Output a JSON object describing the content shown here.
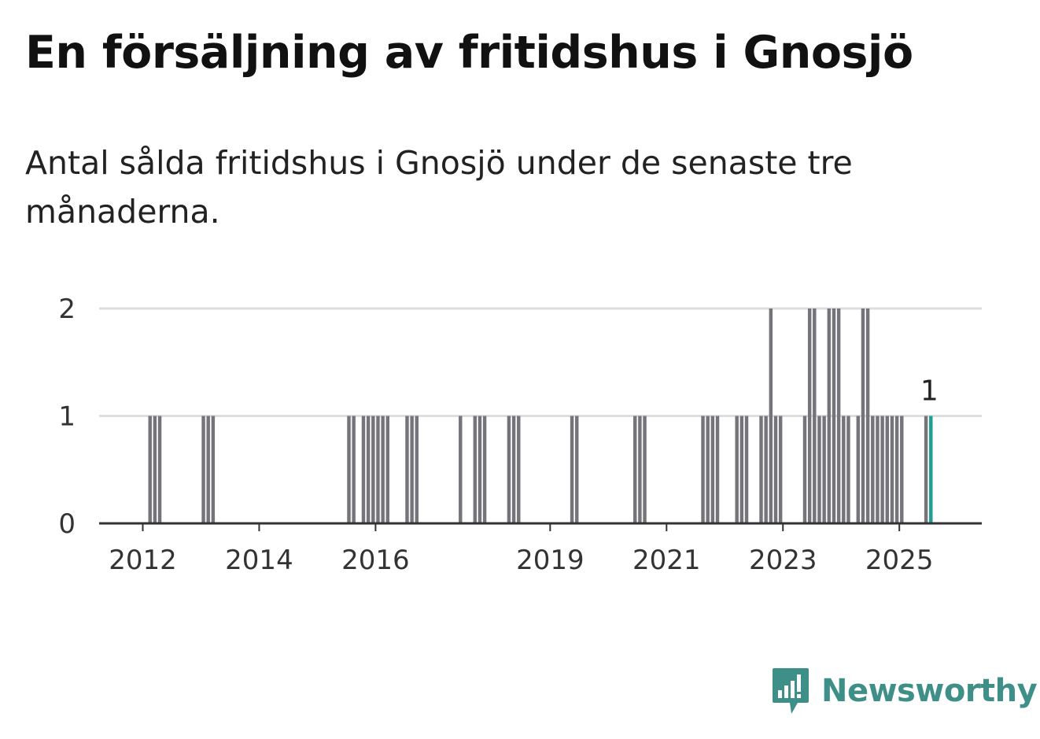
{
  "title": "En försäljning av fritidshus i Gnosjö",
  "subtitle": "Antal sålda fritidshus i Gnosjö under de senaste tre månaderna.",
  "brand": {
    "name": "Newsworthy"
  },
  "colors": {
    "bar": "#75747a",
    "highlight": "#1f9e94",
    "grid": "#dddddd",
    "axis": "#333333",
    "brand": "#3f8f89"
  },
  "chart_data": {
    "type": "bar",
    "title": "En försäljning av fritidshus i Gnosjö",
    "subtitle": "Antal sålda fritidshus i Gnosjö under de senaste tre månaderna.",
    "x_unit": "month",
    "xlim": [
      "2011-04",
      "2026-06"
    ],
    "ylim": [
      0,
      2
    ],
    "y_ticks": [
      0,
      1,
      2
    ],
    "x_ticks": [
      "2012",
      "2014",
      "2016",
      "2019",
      "2021",
      "2023",
      "2025"
    ],
    "grid": true,
    "highlight_label": "1",
    "highlight": {
      "x": "2025-07",
      "value": 1
    },
    "series": [
      {
        "values": [
          {
            "x": "2012-02",
            "value": 1
          },
          {
            "x": "2012-03",
            "value": 1
          },
          {
            "x": "2012-04",
            "value": 1
          },
          {
            "x": "2013-01",
            "value": 1
          },
          {
            "x": "2013-02",
            "value": 1
          },
          {
            "x": "2013-03",
            "value": 1
          },
          {
            "x": "2015-07",
            "value": 1
          },
          {
            "x": "2015-08",
            "value": 1
          },
          {
            "x": "2015-10",
            "value": 1
          },
          {
            "x": "2015-11",
            "value": 1
          },
          {
            "x": "2015-12",
            "value": 1
          },
          {
            "x": "2016-01",
            "value": 1
          },
          {
            "x": "2016-02",
            "value": 1
          },
          {
            "x": "2016-03",
            "value": 1
          },
          {
            "x": "2016-07",
            "value": 1
          },
          {
            "x": "2016-08",
            "value": 1
          },
          {
            "x": "2016-09",
            "value": 1
          },
          {
            "x": "2017-06",
            "value": 1
          },
          {
            "x": "2017-09",
            "value": 1
          },
          {
            "x": "2017-10",
            "value": 1
          },
          {
            "x": "2017-11",
            "value": 1
          },
          {
            "x": "2018-04",
            "value": 1
          },
          {
            "x": "2018-05",
            "value": 1
          },
          {
            "x": "2018-06",
            "value": 1
          },
          {
            "x": "2019-05",
            "value": 1
          },
          {
            "x": "2019-06",
            "value": 1
          },
          {
            "x": "2020-06",
            "value": 1
          },
          {
            "x": "2020-07",
            "value": 1
          },
          {
            "x": "2020-08",
            "value": 1
          },
          {
            "x": "2021-08",
            "value": 1
          },
          {
            "x": "2021-09",
            "value": 1
          },
          {
            "x": "2021-10",
            "value": 1
          },
          {
            "x": "2021-11",
            "value": 1
          },
          {
            "x": "2022-03",
            "value": 1
          },
          {
            "x": "2022-04",
            "value": 1
          },
          {
            "x": "2022-05",
            "value": 1
          },
          {
            "x": "2022-08",
            "value": 1
          },
          {
            "x": "2022-09",
            "value": 1
          },
          {
            "x": "2022-10",
            "value": 2
          },
          {
            "x": "2022-11",
            "value": 1
          },
          {
            "x": "2022-12",
            "value": 1
          },
          {
            "x": "2023-05",
            "value": 1
          },
          {
            "x": "2023-06",
            "value": 2
          },
          {
            "x": "2023-07",
            "value": 2
          },
          {
            "x": "2023-08",
            "value": 1
          },
          {
            "x": "2023-09",
            "value": 1
          },
          {
            "x": "2023-10",
            "value": 2
          },
          {
            "x": "2023-11",
            "value": 2
          },
          {
            "x": "2023-12",
            "value": 2
          },
          {
            "x": "2024-01",
            "value": 1
          },
          {
            "x": "2024-02",
            "value": 1
          },
          {
            "x": "2024-04",
            "value": 1
          },
          {
            "x": "2024-05",
            "value": 2
          },
          {
            "x": "2024-06",
            "value": 2
          },
          {
            "x": "2024-07",
            "value": 1
          },
          {
            "x": "2024-08",
            "value": 1
          },
          {
            "x": "2024-09",
            "value": 1
          },
          {
            "x": "2024-10",
            "value": 1
          },
          {
            "x": "2024-11",
            "value": 1
          },
          {
            "x": "2024-12",
            "value": 1
          },
          {
            "x": "2025-01",
            "value": 1
          },
          {
            "x": "2025-06",
            "value": 1
          },
          {
            "x": "2025-07",
            "value": 1
          }
        ]
      }
    ]
  }
}
